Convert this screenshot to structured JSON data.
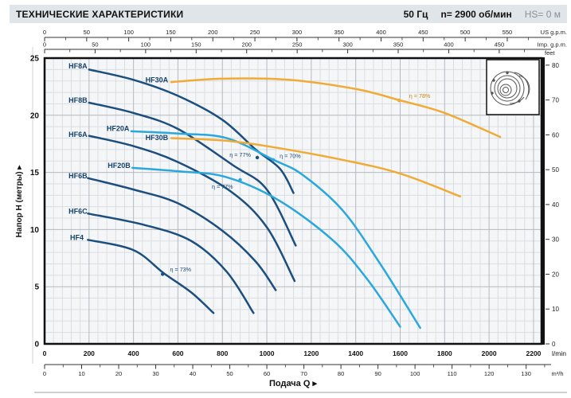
{
  "header": {
    "title": "ТЕХНИЧЕСКИЕ ХАРАКТЕРИСТИКИ",
    "frequency": "50 Гц",
    "speed": "n= 2900 об/мин",
    "suction": "HS= 0 м"
  },
  "chart_data": {
    "type": "line",
    "title": "Pump performance curves H(Q)",
    "xlabel": "Подача Q",
    "ylabel": "Напор Н (метры)",
    "arrow": "▸",
    "x_unit_primary": "l/min",
    "x_unit_secondary": "m³/h",
    "x_unit_top1": "US g.p.m.",
    "x_unit_top2": "Imp. g.p.m.",
    "y_unit_right": "feet",
    "xlim_lmin": [
      0,
      2236
    ],
    "ylim_m": [
      0,
      25
    ],
    "x_ticks_lmin": [
      0,
      200,
      400,
      600,
      800,
      1000,
      1200,
      1400,
      1600,
      1800,
      2000,
      2200
    ],
    "x_ticks_m3h": [
      0,
      10,
      20,
      30,
      40,
      50,
      60,
      70,
      80,
      90,
      100,
      110,
      120,
      130
    ],
    "x_ticks_usgpm": [
      0,
      50,
      100,
      150,
      200,
      250,
      300,
      350,
      400,
      450,
      500,
      550
    ],
    "x_ticks_impgpm": [
      0,
      50,
      100,
      150,
      200,
      250,
      300,
      350,
      400,
      450
    ],
    "y_ticks_m": [
      0,
      5,
      10,
      15,
      20,
      25
    ],
    "y_ticks_feet": [
      0,
      10,
      20,
      30,
      40,
      50,
      60,
      70,
      80
    ],
    "grid": true,
    "colors": {
      "navy": "#1c4e7e",
      "cyan": "#2aa7dc",
      "orange": "#f0ab36",
      "eta_navy": "#1b4a75",
      "eta_orange": "#c8860a"
    },
    "series": [
      {
        "name": "HF8A",
        "color": "navy",
        "label_at": [
          150,
          24.3
        ],
        "points": [
          [
            200,
            24.0
          ],
          [
            400,
            23.1
          ],
          [
            600,
            21.7
          ],
          [
            800,
            19.6
          ],
          [
            950,
            17.0
          ],
          [
            1060,
            15.3
          ],
          [
            1120,
            13.2
          ]
        ]
      },
      {
        "name": "HF8B",
        "color": "navy",
        "label_at": [
          150,
          21.3
        ],
        "points": [
          [
            200,
            21.1
          ],
          [
            400,
            20.2
          ],
          [
            600,
            18.8
          ],
          [
            850,
            15.6
          ],
          [
            1000,
            13.5
          ],
          [
            1130,
            8.6
          ]
        ]
      },
      {
        "name": "HF6A",
        "color": "navy",
        "label_at": [
          150,
          18.3
        ],
        "points": [
          [
            200,
            18.2
          ],
          [
            400,
            17.3
          ],
          [
            600,
            15.9
          ],
          [
            840,
            13.3
          ],
          [
            1000,
            10.2
          ],
          [
            1125,
            5.5
          ]
        ]
      },
      {
        "name": "HF6B",
        "color": "navy",
        "label_at": [
          150,
          14.7
        ],
        "points": [
          [
            195,
            14.5
          ],
          [
            400,
            13.5
          ],
          [
            600,
            12.3
          ],
          [
            800,
            9.9
          ],
          [
            950,
            7.2
          ],
          [
            1040,
            4.7
          ]
        ]
      },
      {
        "name": "HF6C",
        "color": "navy",
        "label_at": [
          150,
          11.6
        ],
        "points": [
          [
            195,
            11.4
          ],
          [
            450,
            10.4
          ],
          [
            660,
            9.0
          ],
          [
            820,
            6.3
          ],
          [
            940,
            2.7
          ]
        ]
      },
      {
        "name": "HF4",
        "color": "navy",
        "label_at": [
          145,
          9.3
        ],
        "points": [
          [
            195,
            9.1
          ],
          [
            400,
            8.2
          ],
          [
            535,
            6.2
          ],
          [
            660,
            4.5
          ],
          [
            760,
            2.7
          ]
        ]
      },
      {
        "name": "HF20A",
        "color": "cyan",
        "label_at": [
          330,
          18.85
        ],
        "points": [
          [
            390,
            18.6
          ],
          [
            600,
            18.4
          ],
          [
            820,
            18.0
          ],
          [
            1030,
            16.1
          ],
          [
            1160,
            14.8
          ],
          [
            1340,
            11.7
          ],
          [
            1510,
            7.0
          ],
          [
            1690,
            1.4
          ]
        ]
      },
      {
        "name": "HF20B",
        "color": "cyan",
        "label_at": [
          335,
          15.6
        ],
        "points": [
          [
            395,
            15.4
          ],
          [
            600,
            15.1
          ],
          [
            815,
            14.6
          ],
          [
            1050,
            12.6
          ],
          [
            1295,
            9.1
          ],
          [
            1450,
            5.7
          ],
          [
            1600,
            1.5
          ]
        ]
      },
      {
        "name": "HF30A",
        "color": "orange",
        "label_at": [
          505,
          23.1
        ],
        "points": [
          [
            570,
            22.9
          ],
          [
            800,
            23.2
          ],
          [
            1100,
            23.1
          ],
          [
            1400,
            22.3
          ],
          [
            1600,
            21.3
          ],
          [
            1800,
            20.2
          ],
          [
            2050,
            18.1
          ]
        ]
      },
      {
        "name": "HF30B",
        "color": "orange",
        "label_at": [
          505,
          18.05
        ],
        "points": [
          [
            570,
            18.0
          ],
          [
            800,
            17.8
          ],
          [
            1000,
            17.3
          ],
          [
            1340,
            16.1
          ],
          [
            1600,
            14.9
          ],
          [
            1870,
            12.9
          ]
        ]
      }
    ],
    "efficiency_markers": [
      {
        "label": "η = 77%",
        "series": "HF8A",
        "color": "navy",
        "text_color": "eta_navy",
        "dot": [
          957,
          16.3
        ],
        "text_at": [
          880,
          16.55
        ]
      },
      {
        "label": "η = 70%",
        "series": "HF20A",
        "color": "cyan",
        "text_color": "eta_navy",
        "dot": [
          1029,
          16.1
        ],
        "text_at": [
          1105,
          16.45
        ]
      },
      {
        "label": "η = 77%",
        "series": "HF20B",
        "color": "cyan",
        "text_color": "eta_navy",
        "dot": [
          880,
          14.35
        ],
        "text_at": [
          800,
          13.75
        ]
      },
      {
        "label": "η = 73%",
        "series": "HF4",
        "color": "navy",
        "text_color": "eta_navy",
        "dot": [
          531,
          6.1
        ],
        "text_at": [
          612,
          6.5
        ]
      },
      {
        "label": "η = 78%",
        "series": "HF30A",
        "color": "orange",
        "text_color": "eta_orange",
        "dot": [
          1595,
          21.3
        ],
        "text_at": [
          1688,
          21.7
        ]
      }
    ],
    "legend_position": "none",
    "unit_conversions": {
      "usgpm_to_lmin": 3.785,
      "impgpm_to_lmin": 4.546,
      "m3h_to_lmin": 16.667,
      "feet_to_m": 0.3048
    }
  },
  "inset": {
    "name": "pump-casing-drawing"
  }
}
